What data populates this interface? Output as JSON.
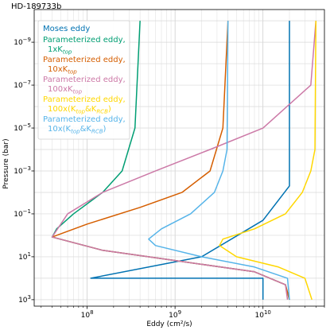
{
  "chart_data": {
    "type": "line",
    "title": "HD-189733b",
    "xlabel": "Eddy (cm²/s)",
    "ylabel": "Pressure (bar)",
    "xscale": "log",
    "yscale": "log",
    "xlim": [
      25000000.0,
      50000000000.0
    ],
    "ylim": [
      2000,
      3e-11
    ],
    "y_inverted": true,
    "grid": true,
    "legend_position": "upper-left",
    "x_ticks": [
      {
        "value": 100000000.0,
        "base": "10",
        "exp": "8"
      },
      {
        "value": 1000000000.0,
        "base": "10",
        "exp": "9"
      },
      {
        "value": 10000000000.0,
        "base": "10",
        "exp": "10"
      }
    ],
    "y_ticks": [
      {
        "value": 1e-09,
        "base": "10",
        "exp": "−9"
      },
      {
        "value": 1e-07,
        "base": "10",
        "exp": "−7"
      },
      {
        "value": 1e-05,
        "base": "10",
        "exp": "−5"
      },
      {
        "value": 0.001,
        "base": "10",
        "exp": "−3"
      },
      {
        "value": 0.1,
        "base": "10",
        "exp": "−1"
      },
      {
        "value": 10,
        "base": "10",
        "exp": "1"
      },
      {
        "value": 1000,
        "base": "10",
        "exp": "3"
      }
    ],
    "series": [
      {
        "color": "#0072B2",
        "legend": {
          "line1": "Moses eddy",
          "line2": null,
          "line2_sub": null
        },
        "points": [
          [
            20000000000.0,
            1e-10
          ],
          [
            20000000000.0,
            0.005
          ],
          [
            10000000000.0,
            0.2
          ],
          [
            2000000000.0,
            10
          ],
          [
            110000000.0,
            100
          ],
          [
            10000000000.0,
            100
          ],
          [
            10000000000.0,
            1000
          ]
        ]
      },
      {
        "color": "#009E73",
        "legend": {
          "line1": "Parameterized eddy,",
          "line2": "1xK",
          "line2_sub": "top"
        },
        "points": [
          [
            400000000.0,
            1e-10
          ],
          [
            350000000.0,
            1e-05
          ],
          [
            250000000.0,
            0.001
          ],
          [
            150000000.0,
            0.01
          ],
          [
            70000000.0,
            0.1
          ],
          [
            45000000.0,
            0.5
          ],
          [
            40000000.0,
            1.2
          ],
          [
            150000000.0,
            5
          ],
          [
            1000000000.0,
            15
          ],
          [
            8000000000.0,
            50
          ],
          [
            18000000000.0,
            200
          ],
          [
            20000000000.0,
            1000
          ]
        ]
      },
      {
        "color": "#D55E00",
        "legend": {
          "line1": "Parameterized eddy,",
          "line2": "10xK",
          "line2_sub": "top"
        },
        "points": [
          [
            4000000000.0,
            1e-10
          ],
          [
            3500000000.0,
            1e-05
          ],
          [
            2500000000.0,
            0.001
          ],
          [
            1200000000.0,
            0.01
          ],
          [
            400000000.0,
            0.05
          ],
          [
            100000000.0,
            0.3
          ],
          [
            40000000.0,
            1.2
          ],
          [
            150000000.0,
            5
          ],
          [
            1000000000.0,
            15
          ],
          [
            8000000000.0,
            50
          ],
          [
            18000000000.0,
            200
          ],
          [
            20000000000.0,
            1000
          ]
        ]
      },
      {
        "color": "#CC79A7",
        "legend": {
          "line1": "Parameterized eddy,",
          "line2": "100xK",
          "line2_sub": "top"
        },
        "points": [
          [
            40000000000.0,
            1e-10
          ],
          [
            35000000000.0,
            1e-07
          ],
          [
            10000000000.0,
            1e-05
          ],
          [
            2500000000.0,
            0.0001
          ],
          [
            600000000.0,
            0.001
          ],
          [
            150000000.0,
            0.01
          ],
          [
            60000000.0,
            0.1
          ],
          [
            40000000.0,
            1.2
          ],
          [
            150000000.0,
            5
          ],
          [
            1000000000.0,
            15
          ],
          [
            8000000000.0,
            50
          ],
          [
            18000000000.0,
            200
          ],
          [
            19000000000.0,
            1000
          ]
        ]
      },
      {
        "color": "#FFD700",
        "legend": {
          "line1": "Parameterized eddy,",
          "line2": "100x(K",
          "line2_sub": "top",
          "line2_mid": "&K",
          "line2_sub2": "RCB",
          "line2_end": ")"
        },
        "points": [
          [
            40000000000.0,
            1e-10
          ],
          [
            39000000000.0,
            0.0001
          ],
          [
            35000000000.0,
            0.001
          ],
          [
            28000000000.0,
            0.01
          ],
          [
            18000000000.0,
            0.1
          ],
          [
            8000000000.0,
            0.5
          ],
          [
            3500000000.0,
            1.5
          ],
          [
            3200000000.0,
            3
          ],
          [
            5000000000.0,
            10
          ],
          [
            15000000000.0,
            30
          ],
          [
            30000000000.0,
            100
          ],
          [
            36000000000.0,
            1000
          ]
        ]
      },
      {
        "color": "#56B4E9",
        "legend": {
          "line1": "Parameterized eddy,",
          "line2": "10x(K",
          "line2_sub": "top",
          "line2_mid": "&K",
          "line2_sub2": "RCB",
          "line2_end": ")"
        },
        "points": [
          [
            4000000000.0,
            1e-10
          ],
          [
            3900000000.0,
            0.0001
          ],
          [
            3500000000.0,
            0.001
          ],
          [
            2800000000.0,
            0.01
          ],
          [
            1500000000.0,
            0.1
          ],
          [
            700000000.0,
            0.5
          ],
          [
            500000000.0,
            1.5
          ],
          [
            600000000.0,
            3
          ],
          [
            2000000000.0,
            10
          ],
          [
            8000000000.0,
            30
          ],
          [
            19000000000.0,
            100
          ],
          [
            20000000000.0,
            1000
          ]
        ]
      }
    ]
  }
}
